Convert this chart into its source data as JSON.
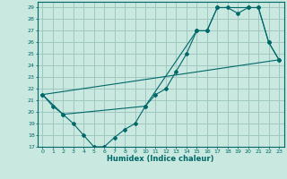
{
  "xlabel": "Humidex (Indice chaleur)",
  "bg_color": "#c8e8e0",
  "grid_color": "#a0c8c0",
  "line_color": "#006868",
  "xlim": [
    -0.5,
    23.5
  ],
  "ylim": [
    17,
    29.5
  ],
  "yticks": [
    17,
    18,
    19,
    20,
    21,
    22,
    23,
    24,
    25,
    26,
    27,
    28,
    29
  ],
  "xticks": [
    0,
    1,
    2,
    3,
    4,
    5,
    6,
    7,
    8,
    9,
    10,
    11,
    12,
    13,
    14,
    15,
    16,
    17,
    18,
    19,
    20,
    21,
    22,
    23
  ],
  "line1_x": [
    0,
    1,
    2,
    3,
    4,
    5,
    6,
    7,
    8,
    9,
    10,
    11,
    12,
    13,
    14,
    15,
    16,
    17,
    18,
    19,
    20,
    21,
    22,
    23
  ],
  "line1_y": [
    21.5,
    20.5,
    19.8,
    19.0,
    18.0,
    17.0,
    17.0,
    17.8,
    18.5,
    19.0,
    20.5,
    21.5,
    22.0,
    23.5,
    25.0,
    27.0,
    27.0,
    29.0,
    29.0,
    28.5,
    29.0,
    29.0,
    26.0,
    24.5
  ],
  "line2_x": [
    0,
    23
  ],
  "line2_y": [
    21.5,
    24.5
  ],
  "line3_x": [
    0,
    2,
    10,
    15,
    16,
    17,
    20,
    21,
    22,
    23
  ],
  "line3_y": [
    21.5,
    19.8,
    20.5,
    27.0,
    27.0,
    29.0,
    29.0,
    29.0,
    26.0,
    24.5
  ]
}
